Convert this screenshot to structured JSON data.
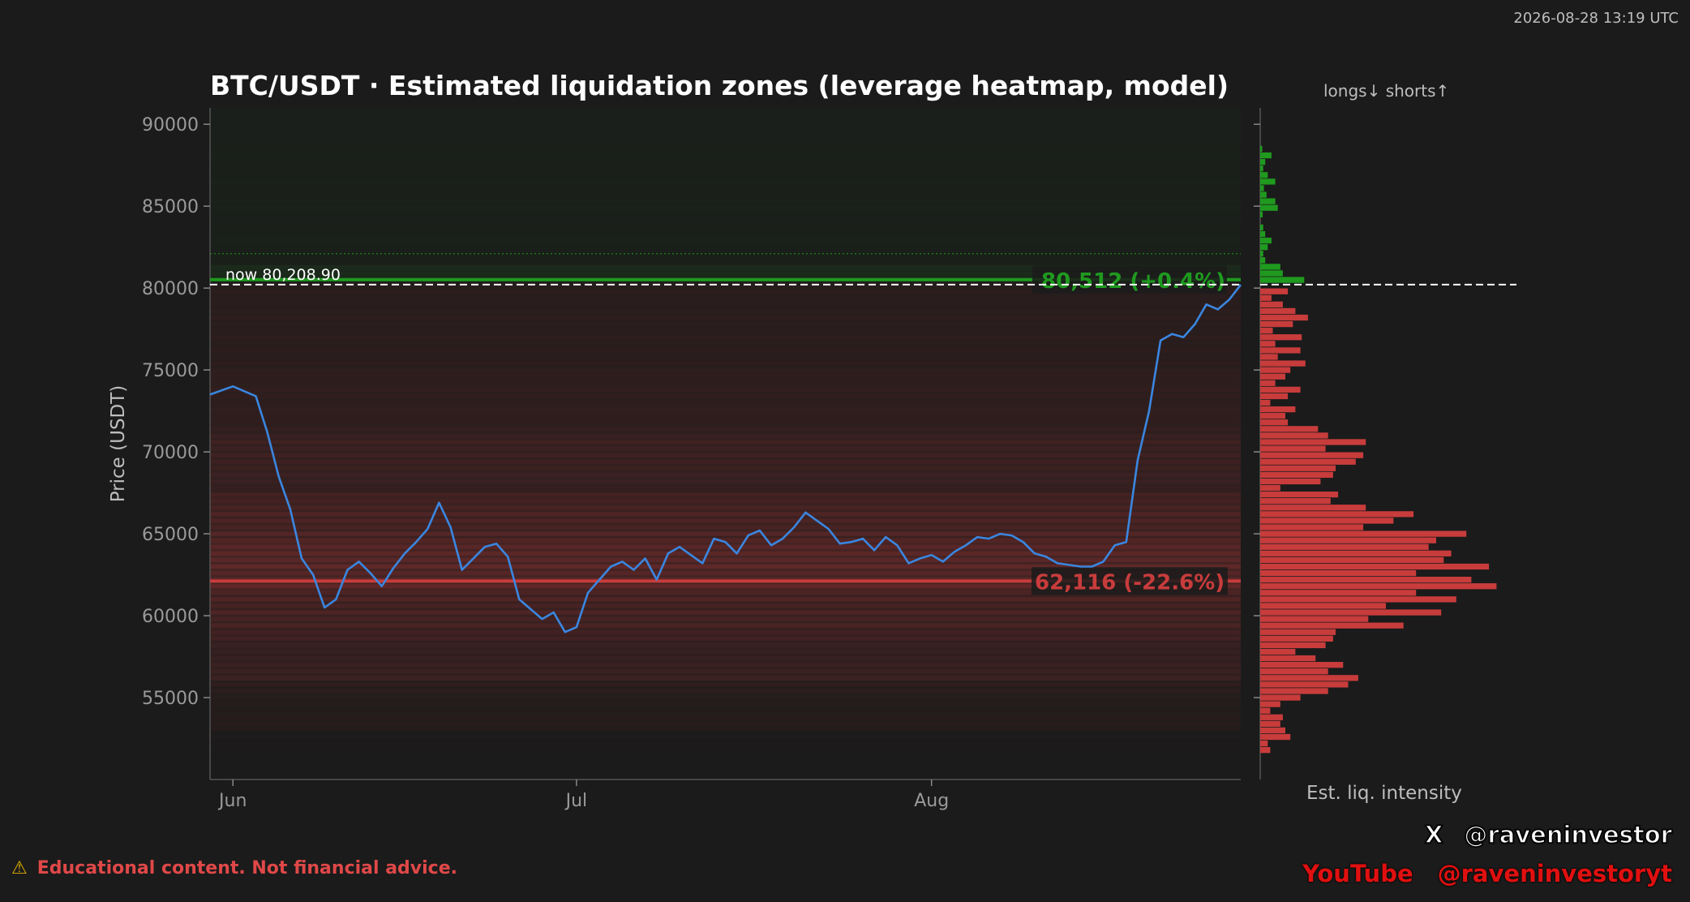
{
  "timestamp": "2026-08-28 13:19 UTC",
  "disclaimer": {
    "icon": "warning-icon",
    "text": "Educational content. Not financial advice."
  },
  "social": {
    "x_label": "X",
    "x_handle": "@raveninvestor",
    "youtube_label": "YouTube",
    "youtube_handle": "@raveninvestoryt"
  },
  "colors": {
    "background": "#1b1b1b",
    "price_line": "#3a86e0",
    "short_zone": "#1f9a1f",
    "long_zone": "#c83c3c",
    "text_muted": "#9a9a9a"
  },
  "chart_data": [
    {
      "type": "line",
      "title": "BTC/USDT · Estimated liquidation zones (leverage heatmap, model)",
      "xlabel": "",
      "ylabel": "Price (USDT)",
      "ylim": [
        50000,
        91000
      ],
      "y_ticks": [
        55000,
        60000,
        65000,
        70000,
        75000,
        80000,
        85000,
        90000
      ],
      "x_ticks": [
        {
          "date": "2026-06-01",
          "label": "Jun"
        },
        {
          "date": "2026-07-01",
          "label": "Jul"
        },
        {
          "date": "2026-08-01",
          "label": "Aug"
        }
      ],
      "x_range": [
        "2026-05-30",
        "2026-08-28"
      ],
      "grid": false,
      "current_price": 80208.9,
      "current_price_label": "now 80,208.90",
      "series": [
        {
          "x": [
            "2026-05-30",
            "2026-06-01",
            "2026-06-03",
            "2026-06-04",
            "2026-06-05",
            "2026-06-06",
            "2026-06-07",
            "2026-06-08",
            "2026-06-09",
            "2026-06-10",
            "2026-06-11",
            "2026-06-12",
            "2026-06-13",
            "2026-06-14",
            "2026-06-15",
            "2026-06-16",
            "2026-06-17",
            "2026-06-18",
            "2026-06-19",
            "2026-06-20",
            "2026-06-21",
            "2026-06-22",
            "2026-06-23",
            "2026-06-24",
            "2026-06-25",
            "2026-06-26",
            "2026-06-27",
            "2026-06-28",
            "2026-06-29",
            "2026-06-30",
            "2026-07-01",
            "2026-07-02",
            "2026-07-03",
            "2026-07-04",
            "2026-07-05",
            "2026-07-06",
            "2026-07-07",
            "2026-07-08",
            "2026-07-09",
            "2026-07-10",
            "2026-07-11",
            "2026-07-12",
            "2026-07-13",
            "2026-07-14",
            "2026-07-15",
            "2026-07-16",
            "2026-07-17",
            "2026-07-18",
            "2026-07-19",
            "2026-07-20",
            "2026-07-21",
            "2026-07-22",
            "2026-07-23",
            "2026-07-24",
            "2026-07-25",
            "2026-07-26",
            "2026-07-27",
            "2026-07-28",
            "2026-07-29",
            "2026-07-30",
            "2026-07-31",
            "2026-08-01",
            "2026-08-02",
            "2026-08-03",
            "2026-08-04",
            "2026-08-05",
            "2026-08-06",
            "2026-08-07",
            "2026-08-08",
            "2026-08-09",
            "2026-08-10",
            "2026-08-11",
            "2026-08-12",
            "2026-08-13",
            "2026-08-14",
            "2026-08-15",
            "2026-08-16",
            "2026-08-17",
            "2026-08-18",
            "2026-08-19",
            "2026-08-20",
            "2026-08-21",
            "2026-08-22",
            "2026-08-23",
            "2026-08-24",
            "2026-08-25",
            "2026-08-26",
            "2026-08-27",
            "2026-08-28"
          ],
          "values": [
            73500,
            74000,
            73400,
            71200,
            68500,
            66500,
            63500,
            62500,
            60500,
            61000,
            62800,
            63300,
            62600,
            61800,
            62900,
            63800,
            64500,
            65300,
            66900,
            65400,
            62800,
            63500,
            64200,
            64400,
            63600,
            61000,
            60400,
            59800,
            60200,
            59000,
            59300,
            61400,
            62200,
            63000,
            63300,
            62800,
            63500,
            62200,
            63800,
            64200,
            63700,
            63200,
            64700,
            64500,
            63800,
            64900,
            65200,
            64300,
            64700,
            65400,
            66300,
            65800,
            65300,
            64400,
            64500,
            64700,
            64000,
            64800,
            64300,
            63200,
            63500,
            63700,
            63300,
            63900,
            64300,
            64800,
            64700,
            65000,
            64900,
            64500,
            63800,
            63600,
            63200,
            63100,
            63000,
            63000,
            63300,
            64300,
            64500,
            69500,
            72500,
            76800,
            77200,
            77000,
            77800,
            79000,
            78700,
            79300,
            80200
          ]
        }
      ],
      "levels": [
        {
          "name": "short",
          "price": 80512,
          "label": "80,512 (+0.4%)"
        },
        {
          "name": "long",
          "price": 62116,
          "label": "62,116 (-22.6%)"
        }
      ],
      "heat_bands": [
        {
          "low": 81400,
          "high": 91000,
          "side": "short",
          "intensity": 0.1
        },
        {
          "low": 80400,
          "high": 81400,
          "side": "short",
          "intensity": 0.3
        },
        {
          "low": 75000,
          "high": 80300,
          "side": "long",
          "intensity": 0.22
        },
        {
          "low": 71000,
          "high": 75000,
          "side": "long",
          "intensity": 0.3
        },
        {
          "low": 67500,
          "high": 71000,
          "side": "long",
          "intensity": 0.38
        },
        {
          "low": 64500,
          "high": 67500,
          "side": "long",
          "intensity": 0.55
        },
        {
          "low": 61500,
          "high": 64500,
          "side": "long",
          "intensity": 0.7
        },
        {
          "low": 58500,
          "high": 61500,
          "side": "long",
          "intensity": 0.48
        },
        {
          "low": 56000,
          "high": 58500,
          "side": "long",
          "intensity": 0.36
        },
        {
          "low": 53000,
          "high": 56000,
          "side": "long",
          "intensity": 0.15
        }
      ]
    },
    {
      "type": "bar",
      "orientation": "horizontal",
      "title": "longs↓  shorts↑",
      "xlabel": "Est. liq. intensity",
      "ylim": [
        50000,
        91000
      ],
      "x_max": 1.0,
      "bins": [
        {
          "price": 88500,
          "value": 0.008,
          "side": "short"
        },
        {
          "price": 88100,
          "value": 0.045,
          "side": "short"
        },
        {
          "price": 87700,
          "value": 0.02,
          "side": "short"
        },
        {
          "price": 87300,
          "value": 0.012,
          "side": "short"
        },
        {
          "price": 86900,
          "value": 0.03,
          "side": "short"
        },
        {
          "price": 86500,
          "value": 0.06,
          "side": "short"
        },
        {
          "price": 86100,
          "value": 0.015,
          "side": "short"
        },
        {
          "price": 85700,
          "value": 0.025,
          "side": "short"
        },
        {
          "price": 85300,
          "value": 0.06,
          "side": "short"
        },
        {
          "price": 84900,
          "value": 0.07,
          "side": "short"
        },
        {
          "price": 84500,
          "value": 0.01,
          "side": "short"
        },
        {
          "price": 83700,
          "value": 0.012,
          "side": "short"
        },
        {
          "price": 83300,
          "value": 0.02,
          "side": "short"
        },
        {
          "price": 82900,
          "value": 0.045,
          "side": "short"
        },
        {
          "price": 82500,
          "value": 0.03,
          "side": "short"
        },
        {
          "price": 82100,
          "value": 0.012,
          "side": "short"
        },
        {
          "price": 81700,
          "value": 0.02,
          "side": "short"
        },
        {
          "price": 81300,
          "value": 0.08,
          "side": "short"
        },
        {
          "price": 80900,
          "value": 0.09,
          "side": "short"
        },
        {
          "price": 80500,
          "value": 0.175,
          "side": "short"
        },
        {
          "price": 79800,
          "value": 0.11,
          "side": "long"
        },
        {
          "price": 79400,
          "value": 0.045,
          "side": "long"
        },
        {
          "price": 79000,
          "value": 0.09,
          "side": "long"
        },
        {
          "price": 78600,
          "value": 0.14,
          "side": "long"
        },
        {
          "price": 78200,
          "value": 0.19,
          "side": "long"
        },
        {
          "price": 77800,
          "value": 0.13,
          "side": "long"
        },
        {
          "price": 77400,
          "value": 0.05,
          "side": "long"
        },
        {
          "price": 77000,
          "value": 0.165,
          "side": "long"
        },
        {
          "price": 76600,
          "value": 0.06,
          "side": "long"
        },
        {
          "price": 76200,
          "value": 0.16,
          "side": "long"
        },
        {
          "price": 75800,
          "value": 0.07,
          "side": "long"
        },
        {
          "price": 75400,
          "value": 0.18,
          "side": "long"
        },
        {
          "price": 75000,
          "value": 0.12,
          "side": "long"
        },
        {
          "price": 74600,
          "value": 0.1,
          "side": "long"
        },
        {
          "price": 74200,
          "value": 0.06,
          "side": "long"
        },
        {
          "price": 73800,
          "value": 0.16,
          "side": "long"
        },
        {
          "price": 73400,
          "value": 0.11,
          "side": "long"
        },
        {
          "price": 73000,
          "value": 0.04,
          "side": "long"
        },
        {
          "price": 72600,
          "value": 0.14,
          "side": "long"
        },
        {
          "price": 72200,
          "value": 0.1,
          "side": "long"
        },
        {
          "price": 71800,
          "value": 0.11,
          "side": "long"
        },
        {
          "price": 71400,
          "value": 0.23,
          "side": "long"
        },
        {
          "price": 71000,
          "value": 0.27,
          "side": "long"
        },
        {
          "price": 70600,
          "value": 0.42,
          "side": "long"
        },
        {
          "price": 70200,
          "value": 0.26,
          "side": "long"
        },
        {
          "price": 69800,
          "value": 0.41,
          "side": "long"
        },
        {
          "price": 69400,
          "value": 0.38,
          "side": "long"
        },
        {
          "price": 69000,
          "value": 0.3,
          "side": "long"
        },
        {
          "price": 68600,
          "value": 0.29,
          "side": "long"
        },
        {
          "price": 68200,
          "value": 0.24,
          "side": "long"
        },
        {
          "price": 67800,
          "value": 0.08,
          "side": "long"
        },
        {
          "price": 67400,
          "value": 0.31,
          "side": "long"
        },
        {
          "price": 67000,
          "value": 0.28,
          "side": "long"
        },
        {
          "price": 66600,
          "value": 0.42,
          "side": "long"
        },
        {
          "price": 66200,
          "value": 0.61,
          "side": "long"
        },
        {
          "price": 65800,
          "value": 0.53,
          "side": "long"
        },
        {
          "price": 65400,
          "value": 0.41,
          "side": "long"
        },
        {
          "price": 65000,
          "value": 0.82,
          "side": "long"
        },
        {
          "price": 64600,
          "value": 0.7,
          "side": "long"
        },
        {
          "price": 64200,
          "value": 0.67,
          "side": "long"
        },
        {
          "price": 63800,
          "value": 0.76,
          "side": "long"
        },
        {
          "price": 63400,
          "value": 0.73,
          "side": "long"
        },
        {
          "price": 63000,
          "value": 0.91,
          "side": "long"
        },
        {
          "price": 62600,
          "value": 0.62,
          "side": "long"
        },
        {
          "price": 62200,
          "value": 0.84,
          "side": "long"
        },
        {
          "price": 61800,
          "value": 0.94,
          "side": "long"
        },
        {
          "price": 61400,
          "value": 0.62,
          "side": "long"
        },
        {
          "price": 61000,
          "value": 0.78,
          "side": "long"
        },
        {
          "price": 60600,
          "value": 0.5,
          "side": "long"
        },
        {
          "price": 60200,
          "value": 0.72,
          "side": "long"
        },
        {
          "price": 59800,
          "value": 0.43,
          "side": "long"
        },
        {
          "price": 59400,
          "value": 0.57,
          "side": "long"
        },
        {
          "price": 59000,
          "value": 0.3,
          "side": "long"
        },
        {
          "price": 58600,
          "value": 0.29,
          "side": "long"
        },
        {
          "price": 58200,
          "value": 0.26,
          "side": "long"
        },
        {
          "price": 57800,
          "value": 0.14,
          "side": "long"
        },
        {
          "price": 57400,
          "value": 0.22,
          "side": "long"
        },
        {
          "price": 57000,
          "value": 0.33,
          "side": "long"
        },
        {
          "price": 56600,
          "value": 0.27,
          "side": "long"
        },
        {
          "price": 56200,
          "value": 0.39,
          "side": "long"
        },
        {
          "price": 55800,
          "value": 0.35,
          "side": "long"
        },
        {
          "price": 55400,
          "value": 0.27,
          "side": "long"
        },
        {
          "price": 55000,
          "value": 0.16,
          "side": "long"
        },
        {
          "price": 54600,
          "value": 0.08,
          "side": "long"
        },
        {
          "price": 54200,
          "value": 0.04,
          "side": "long"
        },
        {
          "price": 53800,
          "value": 0.09,
          "side": "long"
        },
        {
          "price": 53400,
          "value": 0.08,
          "side": "long"
        },
        {
          "price": 53000,
          "value": 0.1,
          "side": "long"
        },
        {
          "price": 52600,
          "value": 0.12,
          "side": "long"
        },
        {
          "price": 52200,
          "value": 0.03,
          "side": "long"
        },
        {
          "price": 51800,
          "value": 0.04,
          "side": "long"
        }
      ]
    }
  ]
}
